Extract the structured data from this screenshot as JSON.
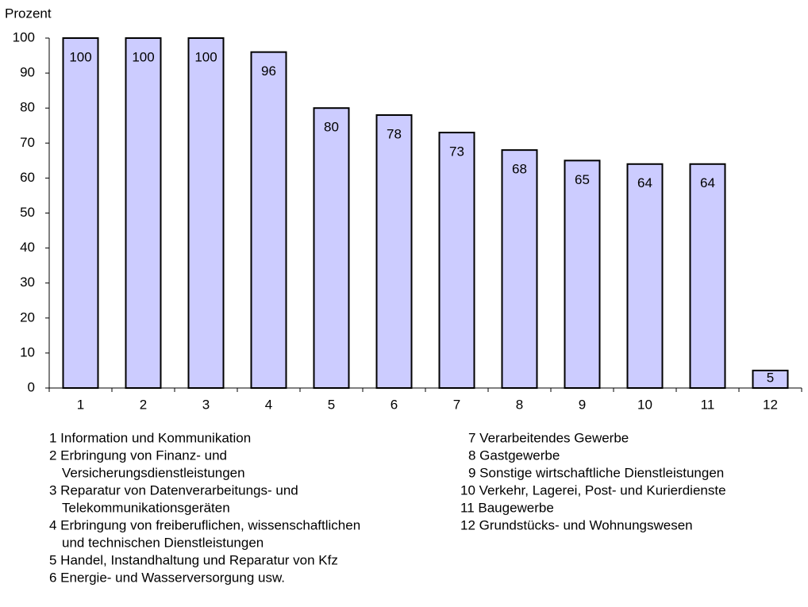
{
  "chart_data": {
    "type": "bar",
    "y_axis_label": "Prozent",
    "categories": [
      "1",
      "2",
      "3",
      "4",
      "5",
      "6",
      "7",
      "8",
      "9",
      "10",
      "11",
      "12"
    ],
    "values": [
      100,
      100,
      100,
      96,
      80,
      78,
      73,
      68,
      65,
      64,
      64,
      5
    ],
    "color": "#ccccff",
    "edge_color": "#000000",
    "ylim": [
      0,
      100
    ],
    "yticks": [
      0,
      10,
      20,
      30,
      40,
      50,
      60,
      70,
      80,
      90,
      100
    ],
    "grid": false,
    "legend_columns": [
      [
        [
          "1 Information und Kommunikation"
        ],
        [
          "2 Erbringung von Finanz- und",
          "Versicherungsdienstleistungen"
        ],
        [
          "3 Reparatur von Datenverarbeitungs- und",
          "Telekommunikationsgeräten"
        ],
        [
          "4 Erbringung von freiberuflichen, wissenschaftlichen",
          "und technischen Dienstleistungen"
        ],
        [
          "5 Handel, Instandhaltung und Reparatur von Kfz"
        ],
        [
          "6 Energie- und Wasserversorgung usw."
        ]
      ],
      [
        [
          "7 Verarbeitendes Gewerbe"
        ],
        [
          "8 Gastgewerbe"
        ],
        [
          "9 Sonstige wirtschaftliche Dienstleistungen"
        ],
        [
          "10 Verkehr, Lagerei, Post- und Kurierdienste"
        ],
        [
          "11 Baugewerbe"
        ],
        [
          "12 Grundstücks- und Wohnungswesen"
        ]
      ]
    ]
  }
}
